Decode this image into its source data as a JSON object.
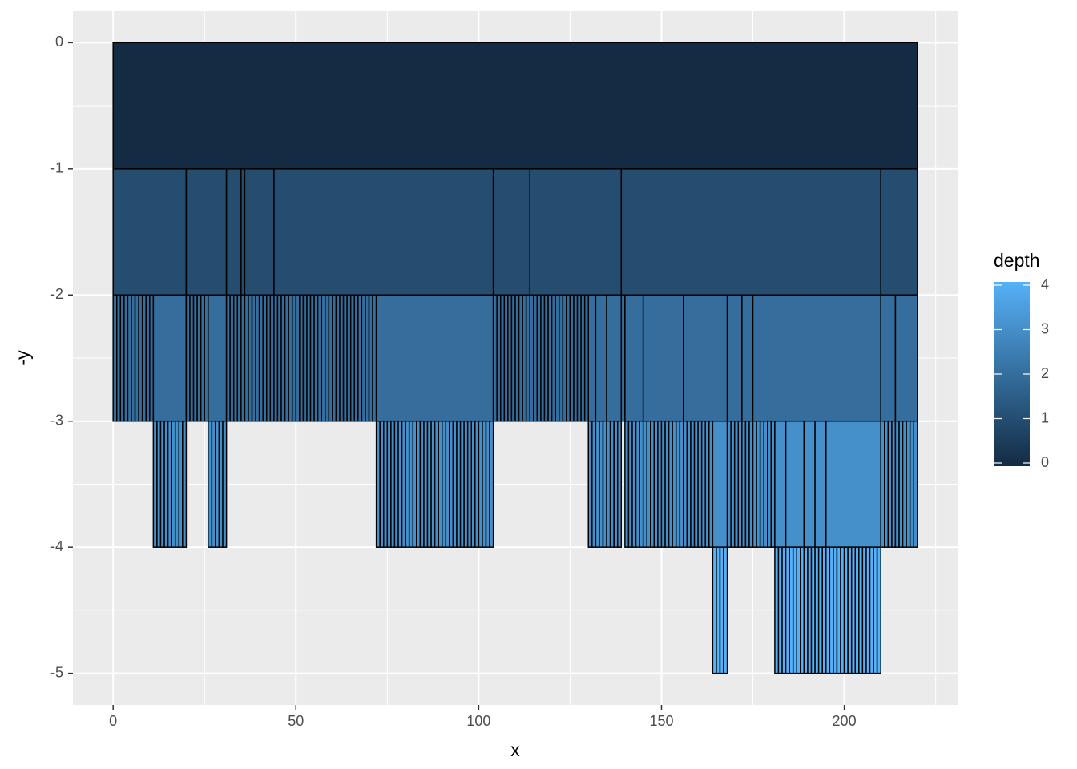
{
  "chart_data": {
    "type": "rect",
    "x_label": "x",
    "y_label": "-y",
    "xlim": [
      -11,
      231
    ],
    "ylim": [
      -5.25,
      0.25
    ],
    "xticks": [
      0,
      50,
      100,
      150,
      200
    ],
    "yticks": [
      0,
      -1,
      -2,
      -3,
      -4,
      -5
    ],
    "minor_xticks": [
      25,
      75,
      125,
      175,
      225
    ],
    "minor_yticks": [
      -0.5,
      -1.5,
      -2.5,
      -3.5,
      -4.5
    ],
    "grid": true,
    "fill_scale": {
      "title": "depth",
      "limits": [
        0,
        4
      ],
      "ticks": [
        0,
        1,
        2,
        3,
        4
      ],
      "low": "#132B43",
      "high": "#56B1F7"
    },
    "rect_fields": [
      "xmin",
      "xmax",
      "ymin",
      "ymax",
      "depth"
    ],
    "rects": [
      [
        0,
        220,
        -1,
        0,
        0
      ],
      [
        0,
        20,
        -2,
        -1,
        1
      ],
      [
        20,
        31,
        -2,
        -1,
        1
      ],
      [
        31,
        35,
        -2,
        -1,
        1
      ],
      [
        35,
        36,
        -2,
        -1,
        1
      ],
      [
        36,
        44,
        -2,
        -1,
        1
      ],
      [
        44,
        104,
        -2,
        -1,
        1
      ],
      [
        104,
        114,
        -2,
        -1,
        1
      ],
      [
        114,
        139,
        -2,
        -1,
        1
      ],
      [
        139,
        210,
        -2,
        -1,
        1
      ],
      [
        210,
        220,
        -2,
        -1,
        1
      ],
      [
        0,
        1,
        -3,
        -2,
        2
      ],
      [
        1,
        2,
        -3,
        -2,
        2
      ],
      [
        2,
        3,
        -3,
        -2,
        2
      ],
      [
        3,
        4,
        -3,
        -2,
        2
      ],
      [
        4,
        5,
        -3,
        -2,
        2
      ],
      [
        5,
        6,
        -3,
        -2,
        2
      ],
      [
        6,
        7,
        -3,
        -2,
        2
      ],
      [
        7,
        8,
        -3,
        -2,
        2
      ],
      [
        8,
        9,
        -3,
        -2,
        2
      ],
      [
        9,
        10,
        -3,
        -2,
        2
      ],
      [
        10,
        11,
        -3,
        -2,
        2
      ],
      [
        11,
        20,
        -3,
        -2,
        2
      ],
      [
        20,
        21,
        -3,
        -2,
        2
      ],
      [
        21,
        22,
        -3,
        -2,
        2
      ],
      [
        22,
        23,
        -3,
        -2,
        2
      ],
      [
        23,
        24,
        -3,
        -2,
        2
      ],
      [
        24,
        25,
        -3,
        -2,
        2
      ],
      [
        25,
        26,
        -3,
        -2,
        2
      ],
      [
        26,
        31,
        -3,
        -2,
        2
      ],
      [
        31,
        32,
        -3,
        -2,
        2
      ],
      [
        32,
        33,
        -3,
        -2,
        2
      ],
      [
        33,
        34,
        -3,
        -2,
        2
      ],
      [
        34,
        35,
        -3,
        -2,
        2
      ],
      [
        35,
        36,
        -3,
        -2,
        2
      ],
      [
        36,
        37,
        -3,
        -2,
        2
      ],
      [
        37,
        38,
        -3,
        -2,
        2
      ],
      [
        38,
        39,
        -3,
        -2,
        2
      ],
      [
        39,
        40,
        -3,
        -2,
        2
      ],
      [
        40,
        41,
        -3,
        -2,
        2
      ],
      [
        41,
        42,
        -3,
        -2,
        2
      ],
      [
        42,
        43,
        -3,
        -2,
        2
      ],
      [
        43,
        44,
        -3,
        -2,
        2
      ],
      [
        44,
        45,
        -3,
        -2,
        2
      ],
      [
        45,
        46,
        -3,
        -2,
        2
      ],
      [
        46,
        47,
        -3,
        -2,
        2
      ],
      [
        47,
        48,
        -3,
        -2,
        2
      ],
      [
        48,
        49,
        -3,
        -2,
        2
      ],
      [
        49,
        50,
        -3,
        -2,
        2
      ],
      [
        50,
        51,
        -3,
        -2,
        2
      ],
      [
        51,
        52,
        -3,
        -2,
        2
      ],
      [
        52,
        53,
        -3,
        -2,
        2
      ],
      [
        53,
        54,
        -3,
        -2,
        2
      ],
      [
        54,
        55,
        -3,
        -2,
        2
      ],
      [
        55,
        56,
        -3,
        -2,
        2
      ],
      [
        56,
        57,
        -3,
        -2,
        2
      ],
      [
        57,
        58,
        -3,
        -2,
        2
      ],
      [
        58,
        59,
        -3,
        -2,
        2
      ],
      [
        59,
        60,
        -3,
        -2,
        2
      ],
      [
        60,
        61,
        -3,
        -2,
        2
      ],
      [
        61,
        62,
        -3,
        -2,
        2
      ],
      [
        62,
        63,
        -3,
        -2,
        2
      ],
      [
        63,
        64,
        -3,
        -2,
        2
      ],
      [
        64,
        65,
        -3,
        -2,
        2
      ],
      [
        65,
        66,
        -3,
        -2,
        2
      ],
      [
        66,
        67,
        -3,
        -2,
        2
      ],
      [
        67,
        68,
        -3,
        -2,
        2
      ],
      [
        68,
        69,
        -3,
        -2,
        2
      ],
      [
        69,
        70,
        -3,
        -2,
        2
      ],
      [
        70,
        71,
        -3,
        -2,
        2
      ],
      [
        71,
        72,
        -3,
        -2,
        2
      ],
      [
        72,
        104,
        -3,
        -2,
        2
      ],
      [
        104,
        105,
        -3,
        -2,
        2
      ],
      [
        105,
        106,
        -3,
        -2,
        2
      ],
      [
        106,
        107,
        -3,
        -2,
        2
      ],
      [
        107,
        108,
        -3,
        -2,
        2
      ],
      [
        108,
        109,
        -3,
        -2,
        2
      ],
      [
        109,
        110,
        -3,
        -2,
        2
      ],
      [
        110,
        111,
        -3,
        -2,
        2
      ],
      [
        111,
        112,
        -3,
        -2,
        2
      ],
      [
        112,
        113,
        -3,
        -2,
        2
      ],
      [
        113,
        114,
        -3,
        -2,
        2
      ],
      [
        114,
        115,
        -3,
        -2,
        2
      ],
      [
        115,
        116,
        -3,
        -2,
        2
      ],
      [
        116,
        117,
        -3,
        -2,
        2
      ],
      [
        117,
        118,
        -3,
        -2,
        2
      ],
      [
        118,
        119,
        -3,
        -2,
        2
      ],
      [
        119,
        120,
        -3,
        -2,
        2
      ],
      [
        120,
        121,
        -3,
        -2,
        2
      ],
      [
        121,
        122,
        -3,
        -2,
        2
      ],
      [
        122,
        123,
        -3,
        -2,
        2
      ],
      [
        123,
        124,
        -3,
        -2,
        2
      ],
      [
        124,
        125,
        -3,
        -2,
        2
      ],
      [
        125,
        126,
        -3,
        -2,
        2
      ],
      [
        126,
        127,
        -3,
        -2,
        2
      ],
      [
        127,
        128,
        -3,
        -2,
        2
      ],
      [
        128,
        129,
        -3,
        -2,
        2
      ],
      [
        129,
        130,
        -3,
        -2,
        2
      ],
      [
        130,
        132,
        -3,
        -2,
        2
      ],
      [
        132,
        135,
        -3,
        -2,
        2
      ],
      [
        135,
        139,
        -3,
        -2,
        2
      ],
      [
        139,
        140,
        -3,
        -2,
        2
      ],
      [
        140,
        145,
        -3,
        -2,
        2
      ],
      [
        145,
        156,
        -3,
        -2,
        2
      ],
      [
        156,
        168,
        -3,
        -2,
        2
      ],
      [
        168,
        172,
        -3,
        -2,
        2
      ],
      [
        172,
        175,
        -3,
        -2,
        2
      ],
      [
        175,
        210,
        -3,
        -2,
        2
      ],
      [
        210,
        214,
        -3,
        -2,
        2
      ],
      [
        214,
        220,
        -3,
        -2,
        2
      ],
      [
        11,
        12,
        -4,
        -3,
        3
      ],
      [
        12,
        13,
        -4,
        -3,
        3
      ],
      [
        13,
        14,
        -4,
        -3,
        3
      ],
      [
        14,
        15,
        -4,
        -3,
        3
      ],
      [
        15,
        16,
        -4,
        -3,
        3
      ],
      [
        16,
        17,
        -4,
        -3,
        3
      ],
      [
        17,
        18,
        -4,
        -3,
        3
      ],
      [
        18,
        19,
        -4,
        -3,
        3
      ],
      [
        19,
        20,
        -4,
        -3,
        3
      ],
      [
        26,
        27,
        -4,
        -3,
        3
      ],
      [
        27,
        28,
        -4,
        -3,
        3
      ],
      [
        28,
        29,
        -4,
        -3,
        3
      ],
      [
        29,
        30,
        -4,
        -3,
        3
      ],
      [
        30,
        31,
        -4,
        -3,
        3
      ],
      [
        72,
        73,
        -4,
        -3,
        3
      ],
      [
        73,
        74,
        -4,
        -3,
        3
      ],
      [
        74,
        75,
        -4,
        -3,
        3
      ],
      [
        75,
        76,
        -4,
        -3,
        3
      ],
      [
        76,
        77,
        -4,
        -3,
        3
      ],
      [
        77,
        78,
        -4,
        -3,
        3
      ],
      [
        78,
        79,
        -4,
        -3,
        3
      ],
      [
        79,
        80,
        -4,
        -3,
        3
      ],
      [
        80,
        81,
        -4,
        -3,
        3
      ],
      [
        81,
        82,
        -4,
        -3,
        3
      ],
      [
        82,
        83,
        -4,
        -3,
        3
      ],
      [
        83,
        84,
        -4,
        -3,
        3
      ],
      [
        84,
        85,
        -4,
        -3,
        3
      ],
      [
        85,
        86,
        -4,
        -3,
        3
      ],
      [
        86,
        87,
        -4,
        -3,
        3
      ],
      [
        87,
        88,
        -4,
        -3,
        3
      ],
      [
        88,
        89,
        -4,
        -3,
        3
      ],
      [
        89,
        90,
        -4,
        -3,
        3
      ],
      [
        90,
        91,
        -4,
        -3,
        3
      ],
      [
        91,
        92,
        -4,
        -3,
        3
      ],
      [
        92,
        93,
        -4,
        -3,
        3
      ],
      [
        93,
        94,
        -4,
        -3,
        3
      ],
      [
        94,
        95,
        -4,
        -3,
        3
      ],
      [
        95,
        96,
        -4,
        -3,
        3
      ],
      [
        96,
        97,
        -4,
        -3,
        3
      ],
      [
        97,
        98,
        -4,
        -3,
        3
      ],
      [
        98,
        99,
        -4,
        -3,
        3
      ],
      [
        99,
        100,
        -4,
        -3,
        3
      ],
      [
        100,
        101,
        -4,
        -3,
        3
      ],
      [
        101,
        102,
        -4,
        -3,
        3
      ],
      [
        102,
        103,
        -4,
        -3,
        3
      ],
      [
        103,
        104,
        -4,
        -3,
        3
      ],
      [
        130,
        131,
        -4,
        -3,
        3
      ],
      [
        131,
        132,
        -4,
        -3,
        3
      ],
      [
        132,
        133,
        -4,
        -3,
        3
      ],
      [
        133,
        134,
        -4,
        -3,
        3
      ],
      [
        134,
        135,
        -4,
        -3,
        3
      ],
      [
        135,
        136,
        -4,
        -3,
        3
      ],
      [
        136,
        137,
        -4,
        -3,
        3
      ],
      [
        137,
        138,
        -4,
        -3,
        3
      ],
      [
        138,
        139,
        -4,
        -3,
        3
      ],
      [
        140,
        141,
        -4,
        -3,
        3
      ],
      [
        141,
        142,
        -4,
        -3,
        3
      ],
      [
        142,
        143,
        -4,
        -3,
        3
      ],
      [
        143,
        144,
        -4,
        -3,
        3
      ],
      [
        144,
        145,
        -4,
        -3,
        3
      ],
      [
        145,
        146,
        -4,
        -3,
        3
      ],
      [
        146,
        147,
        -4,
        -3,
        3
      ],
      [
        147,
        148,
        -4,
        -3,
        3
      ],
      [
        148,
        149,
        -4,
        -3,
        3
      ],
      [
        149,
        150,
        -4,
        -3,
        3
      ],
      [
        150,
        151,
        -4,
        -3,
        3
      ],
      [
        151,
        152,
        -4,
        -3,
        3
      ],
      [
        152,
        153,
        -4,
        -3,
        3
      ],
      [
        153,
        154,
        -4,
        -3,
        3
      ],
      [
        154,
        155,
        -4,
        -3,
        3
      ],
      [
        155,
        156,
        -4,
        -3,
        3
      ],
      [
        156,
        157,
        -4,
        -3,
        3
      ],
      [
        157,
        158,
        -4,
        -3,
        3
      ],
      [
        158,
        159,
        -4,
        -3,
        3
      ],
      [
        159,
        160,
        -4,
        -3,
        3
      ],
      [
        160,
        161,
        -4,
        -3,
        3
      ],
      [
        161,
        162,
        -4,
        -3,
        3
      ],
      [
        162,
        163,
        -4,
        -3,
        3
      ],
      [
        163,
        164,
        -4,
        -3,
        3
      ],
      [
        164,
        168,
        -4,
        -3,
        3
      ],
      [
        168,
        169,
        -4,
        -3,
        3
      ],
      [
        169,
        170,
        -4,
        -3,
        3
      ],
      [
        170,
        171,
        -4,
        -3,
        3
      ],
      [
        171,
        172,
        -4,
        -3,
        3
      ],
      [
        172,
        173,
        -4,
        -3,
        3
      ],
      [
        173,
        174,
        -4,
        -3,
        3
      ],
      [
        174,
        175,
        -4,
        -3,
        3
      ],
      [
        175,
        176,
        -4,
        -3,
        3
      ],
      [
        176,
        177,
        -4,
        -3,
        3
      ],
      [
        177,
        178,
        -4,
        -3,
        3
      ],
      [
        178,
        179,
        -4,
        -3,
        3
      ],
      [
        179,
        180,
        -4,
        -3,
        3
      ],
      [
        180,
        181,
        -4,
        -3,
        3
      ],
      [
        181,
        184,
        -4,
        -3,
        3
      ],
      [
        184,
        189,
        -4,
        -3,
        3
      ],
      [
        189,
        192,
        -4,
        -3,
        3
      ],
      [
        192,
        195,
        -4,
        -3,
        3
      ],
      [
        195,
        210,
        -4,
        -3,
        3
      ],
      [
        210,
        211,
        -4,
        -3,
        3
      ],
      [
        211,
        212,
        -4,
        -3,
        3
      ],
      [
        212,
        213,
        -4,
        -3,
        3
      ],
      [
        213,
        214,
        -4,
        -3,
        3
      ],
      [
        214,
        215,
        -4,
        -3,
        3
      ],
      [
        215,
        216,
        -4,
        -3,
        3
      ],
      [
        216,
        217,
        -4,
        -3,
        3
      ],
      [
        217,
        218,
        -4,
        -3,
        3
      ],
      [
        218,
        219,
        -4,
        -3,
        3
      ],
      [
        219,
        220,
        -4,
        -3,
        3
      ],
      [
        164,
        165,
        -5,
        -4,
        4
      ],
      [
        165,
        166,
        -5,
        -4,
        4
      ],
      [
        166,
        167,
        -5,
        -4,
        4
      ],
      [
        167,
        168,
        -5,
        -4,
        4
      ],
      [
        181,
        182,
        -5,
        -4,
        4
      ],
      [
        182,
        183,
        -5,
        -4,
        4
      ],
      [
        183,
        184,
        -5,
        -4,
        4
      ],
      [
        184,
        185,
        -5,
        -4,
        4
      ],
      [
        185,
        186,
        -5,
        -4,
        4
      ],
      [
        186,
        187,
        -5,
        -4,
        4
      ],
      [
        187,
        188,
        -5,
        -4,
        4
      ],
      [
        188,
        189,
        -5,
        -4,
        4
      ],
      [
        189,
        190,
        -5,
        -4,
        4
      ],
      [
        190,
        191,
        -5,
        -4,
        4
      ],
      [
        191,
        192,
        -5,
        -4,
        4
      ],
      [
        192,
        193,
        -5,
        -4,
        4
      ],
      [
        193,
        194,
        -5,
        -4,
        4
      ],
      [
        194,
        195,
        -5,
        -4,
        4
      ],
      [
        195,
        196,
        -5,
        -4,
        4
      ],
      [
        196,
        197,
        -5,
        -4,
        4
      ],
      [
        197,
        198,
        -5,
        -4,
        4
      ],
      [
        198,
        199,
        -5,
        -4,
        4
      ],
      [
        199,
        200,
        -5,
        -4,
        4
      ],
      [
        200,
        201,
        -5,
        -4,
        4
      ],
      [
        201,
        202,
        -5,
        -4,
        4
      ],
      [
        202,
        203,
        -5,
        -4,
        4
      ],
      [
        203,
        204,
        -5,
        -4,
        4
      ],
      [
        204,
        205,
        -5,
        -4,
        4
      ],
      [
        205,
        206,
        -5,
        -4,
        4
      ],
      [
        206,
        207,
        -5,
        -4,
        4
      ],
      [
        207,
        208,
        -5,
        -4,
        4
      ],
      [
        208,
        209,
        -5,
        -4,
        4
      ],
      [
        209,
        210,
        -5,
        -4,
        4
      ]
    ]
  }
}
